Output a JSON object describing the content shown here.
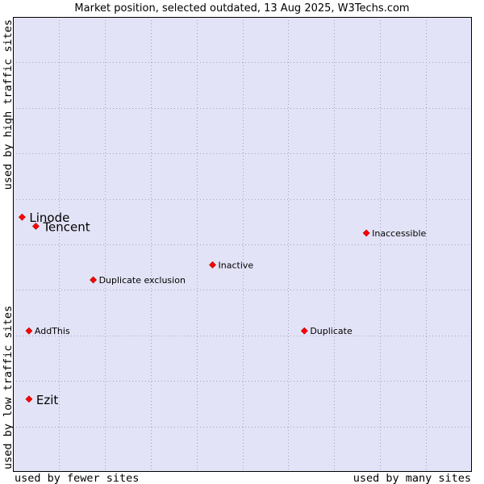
{
  "chart_data": {
    "type": "scatter",
    "title": "Market position, selected outdated, 13 Aug 2025, W3Techs.com",
    "x_low_label": "used by fewer sites",
    "x_high_label": "used by many sites",
    "y_low_label": "used by low traffic sites",
    "y_high_label": "used by high traffic sites",
    "xlim": [
      0,
      1
    ],
    "ylim": [
      0,
      1
    ],
    "grid": true,
    "background_color": "#e3e3f7",
    "grid_color": "#a0a0c0",
    "point_color": "#ff0000",
    "points": [
      {
        "name": "Linode",
        "x": 0.02,
        "y": 0.56,
        "emphasis": true
      },
      {
        "name": "Tencent",
        "x": 0.05,
        "y": 0.54,
        "emphasis": true
      },
      {
        "name": "Inaccessible",
        "x": 0.77,
        "y": 0.525,
        "emphasis": false
      },
      {
        "name": "Inactive",
        "x": 0.435,
        "y": 0.455,
        "emphasis": false
      },
      {
        "name": "Duplicate exclusion",
        "x": 0.175,
        "y": 0.422,
        "emphasis": false
      },
      {
        "name": "AddThis",
        "x": 0.035,
        "y": 0.31,
        "emphasis": false
      },
      {
        "name": "Duplicate",
        "x": 0.635,
        "y": 0.31,
        "emphasis": false
      },
      {
        "name": "Ezit",
        "x": 0.035,
        "y": 0.16,
        "emphasis": true
      }
    ]
  }
}
